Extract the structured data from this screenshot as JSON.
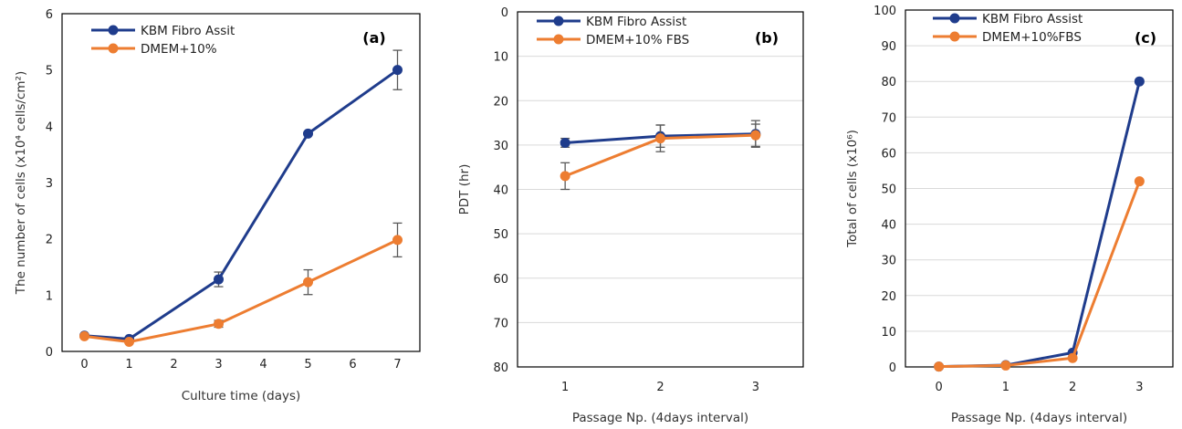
{
  "colors": {
    "blue": "#1f3c8c",
    "orange": "#ed7d31",
    "grid": "#d9d9d9",
    "axis": "#000000",
    "errorbar": "#595959"
  },
  "chart_data": [
    {
      "type": "line",
      "panel_label": "(a)",
      "xlabel": "Culture time (days)",
      "ylabel": "The number of cells (x10⁴ cells/cm²)",
      "x_ticks": [
        "0",
        "1",
        "2",
        "3",
        "4",
        "5",
        "6",
        "7"
      ],
      "y_ticks": [
        "0",
        "1",
        "2",
        "3",
        "4",
        "5",
        "6"
      ],
      "xlim": [
        -0.5,
        7.5
      ],
      "ylim": [
        0,
        6
      ],
      "y_inverted": false,
      "grid": false,
      "legend_position": "top-left",
      "series": [
        {
          "name": "KBM Fibro Assit",
          "color": "#1f3c8c",
          "points": [
            {
              "x": 0,
              "y": 0.28,
              "err": 0
            },
            {
              "x": 1,
              "y": 0.22,
              "err": 0
            },
            {
              "x": 3,
              "y": 1.28,
              "err": 0.13
            },
            {
              "x": 5,
              "y": 3.87,
              "err": 0
            },
            {
              "x": 7,
              "y": 5.0,
              "err": 0.35
            }
          ]
        },
        {
          "name": "DMEM+10%",
          "color": "#ed7d31",
          "points": [
            {
              "x": 0,
              "y": 0.27,
              "err": 0
            },
            {
              "x": 1,
              "y": 0.17,
              "err": 0
            },
            {
              "x": 3,
              "y": 0.49,
              "err": 0.06
            },
            {
              "x": 5,
              "y": 1.23,
              "err": 0.22
            },
            {
              "x": 7,
              "y": 1.98,
              "err": 0.3
            }
          ]
        }
      ]
    },
    {
      "type": "line",
      "panel_label": "(b)",
      "xlabel": "Passage Np. (4days interval)",
      "ylabel": "PDT (hr)",
      "x_ticks": [
        "1",
        "2",
        "3"
      ],
      "y_ticks": [
        "0",
        "10",
        "20",
        "30",
        "40",
        "50",
        "60",
        "70",
        "80"
      ],
      "xlim": [
        0.5,
        3.5
      ],
      "ylim": [
        0,
        80
      ],
      "y_inverted": true,
      "grid": true,
      "legend_position": "top-left",
      "series": [
        {
          "name": "KBM Fibro Assist",
          "color": "#1f3c8c",
          "points": [
            {
              "x": 1,
              "y": 29.5,
              "err": 1.0
            },
            {
              "x": 2,
              "y": 28.0,
              "err": 2.5
            },
            {
              "x": 3,
              "y": 27.5,
              "err": 3.0
            }
          ]
        },
        {
          "name": "DMEM+10% FBS",
          "color": "#ed7d31",
          "points": [
            {
              "x": 1,
              "y": 37.0,
              "err": 3.0
            },
            {
              "x": 2,
              "y": 28.5,
              "err": 3.0
            },
            {
              "x": 3,
              "y": 27.8,
              "err": 2.5
            }
          ]
        }
      ]
    },
    {
      "type": "line",
      "panel_label": "(c)",
      "xlabel": "Passage Np. (4days interval)",
      "ylabel": "Total of cells (x10⁶)",
      "x_ticks": [
        "0",
        "1",
        "2",
        "3"
      ],
      "y_ticks": [
        "0",
        "10",
        "20",
        "30",
        "40",
        "50",
        "60",
        "70",
        "80",
        "90",
        "100"
      ],
      "xlim": [
        -0.5,
        3.5
      ],
      "ylim": [
        0,
        100
      ],
      "y_inverted": false,
      "grid": true,
      "legend_position": "top-left",
      "series": [
        {
          "name": "KBM Fibro Assist",
          "color": "#1f3c8c",
          "points": [
            {
              "x": 0,
              "y": 0.1,
              "err": 0
            },
            {
              "x": 1,
              "y": 0.5,
              "err": 0
            },
            {
              "x": 2,
              "y": 4.0,
              "err": 0
            },
            {
              "x": 3,
              "y": 80.0,
              "err": 0
            }
          ]
        },
        {
          "name": "DMEM+10%FBS",
          "color": "#ed7d31",
          "points": [
            {
              "x": 0,
              "y": 0.1,
              "err": 0
            },
            {
              "x": 1,
              "y": 0.4,
              "err": 0
            },
            {
              "x": 2,
              "y": 2.5,
              "err": 0
            },
            {
              "x": 3,
              "y": 52.0,
              "err": 0
            }
          ]
        }
      ]
    }
  ]
}
